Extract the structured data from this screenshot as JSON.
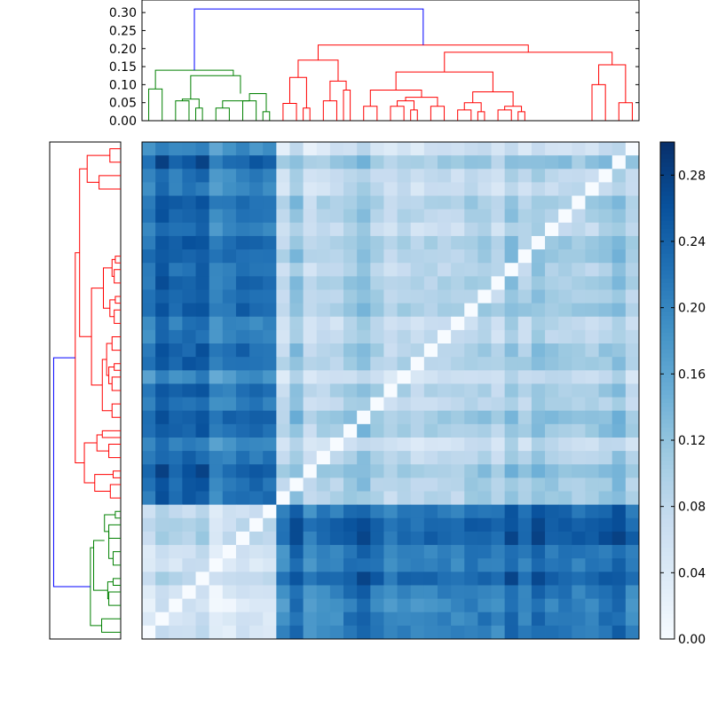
{
  "chart_data": [
    {
      "type": "dendrogram",
      "orientation": "top",
      "ylim": [
        0,
        0.32
      ],
      "yticks": [
        "0.00",
        "0.05",
        "0.10",
        "0.15",
        "0.20",
        "0.25",
        "0.30"
      ],
      "ytick_values": [
        0.0,
        0.05,
        0.1,
        0.15,
        0.2,
        0.25,
        0.3
      ],
      "colors": {
        "root": "#0000ff",
        "cluster_a": "#008000",
        "cluster_b": "#ff0000"
      },
      "leaf_count": 37,
      "root_height": 0.31,
      "merges": [
        {
          "left": [
            0,
            1
          ],
          "right": [
            1,
            2
          ],
          "height": 0.09,
          "cluster": "a"
        },
        {
          "left": [
            2,
            3
          ],
          "right": [
            3,
            4
          ],
          "height": 0.05,
          "cluster": "a"
        },
        {
          "left": [
            4,
            5
          ],
          "right": [
            5,
            6
          ],
          "height": 0.04,
          "cluster": "a"
        },
        {
          "left": [
            6,
            7
          ],
          "right": [
            7,
            8
          ],
          "height": 0.055,
          "cluster": "a"
        },
        {
          "left": [
            8,
            9
          ],
          "right": [
            9,
            10
          ],
          "height": 0.025,
          "cluster": "a"
        },
        {
          "left": [
            10,
            11
          ],
          "right": [
            11,
            12
          ],
          "height": 0.04,
          "cluster": "b"
        },
        {
          "left": [
            12,
            13
          ],
          "right": [
            13,
            14
          ],
          "height": 0.05,
          "cluster": "b"
        },
        {
          "left": [
            14,
            15
          ],
          "right": [
            15,
            16
          ],
          "height": 0.045,
          "cluster": "b"
        },
        {
          "left": [
            16,
            17
          ],
          "right": [
            17,
            18
          ],
          "height": 0.045,
          "cluster": "b"
        },
        {
          "left": [
            18,
            19
          ],
          "right": [
            19,
            20
          ],
          "height": 0.05,
          "cluster": "b"
        },
        {
          "left": [
            20,
            21
          ],
          "right": [
            21,
            22
          ],
          "height": 0.04,
          "cluster": "b"
        },
        {
          "left": [
            22,
            23
          ],
          "right": [
            23,
            24
          ],
          "height": 0.045,
          "cluster": "b"
        },
        {
          "left": [
            24,
            25
          ],
          "right": [
            25,
            26
          ],
          "height": 0.035,
          "cluster": "b"
        },
        {
          "left": [
            26,
            27
          ],
          "right": [
            27,
            28
          ],
          "height": 0.03,
          "cluster": "b"
        },
        {
          "left": [
            28,
            29
          ],
          "right": [
            29,
            30
          ],
          "height": 0.035,
          "cluster": "b"
        },
        {
          "left": [
            30,
            31
          ],
          "right": [
            31,
            32
          ],
          "height": 0.03,
          "cluster": "b"
        },
        {
          "left": [
            32,
            33
          ],
          "right": [
            33,
            34
          ],
          "height": 0.1,
          "cluster": "b"
        },
        {
          "left": [
            34,
            35
          ],
          "right": [
            35,
            36
          ],
          "height": 0.055,
          "cluster": "b"
        }
      ],
      "branches": [
        {
          "x": [
            0.5,
            2.5
          ],
          "h": [
            0.09,
            0.14,
            0.05
          ],
          "cluster": "a",
          "apex": 0.14
        },
        {
          "x": [
            2.5,
            6.5
          ],
          "h": [
            0.04,
            0.125,
            0.055
          ],
          "cluster": "a",
          "apex": 0.125
        },
        {
          "x": [
            6.5,
            9.5
          ],
          "h": [
            0.075,
            0.09,
            0.025
          ],
          "cluster": "a",
          "apex": 0.09
        },
        {
          "x": [
            10.5,
            14.5
          ],
          "h": [
            0.04,
            0.17,
            0.12
          ],
          "cluster": "b",
          "apex": 0.17
        },
        {
          "x": [
            14.5,
            24.5
          ],
          "h": [
            0.07,
            0.14,
            0.13
          ],
          "cluster": "b",
          "apex": 0.14
        },
        {
          "x": [
            24.5,
            33.5
          ],
          "h": [
            0.08,
            0.19,
            0.155
          ],
          "cluster": "b",
          "apex": 0.19
        }
      ]
    },
    {
      "type": "heatmap",
      "rows": 37,
      "cols": 37,
      "vmin": 0.0,
      "vmax": 0.3,
      "colormap": "Blues",
      "colorbar_ticks": [
        "0.00",
        "0.04",
        "0.08",
        "0.12",
        "0.16",
        "0.20",
        "0.24",
        "0.28"
      ],
      "colorbar_tick_values": [
        0.0,
        0.04,
        0.08,
        0.12,
        0.16,
        0.2,
        0.24,
        0.28
      ],
      "cluster_sizes": [
        10,
        27
      ],
      "within_a": 0.06,
      "within_b": 0.09,
      "between": 0.22
    },
    {
      "type": "dendrogram",
      "orientation": "left",
      "leaf_count": 37,
      "colors": {
        "root": "#0000ff",
        "cluster_a": "#008000",
        "cluster_b": "#ff0000"
      }
    }
  ]
}
